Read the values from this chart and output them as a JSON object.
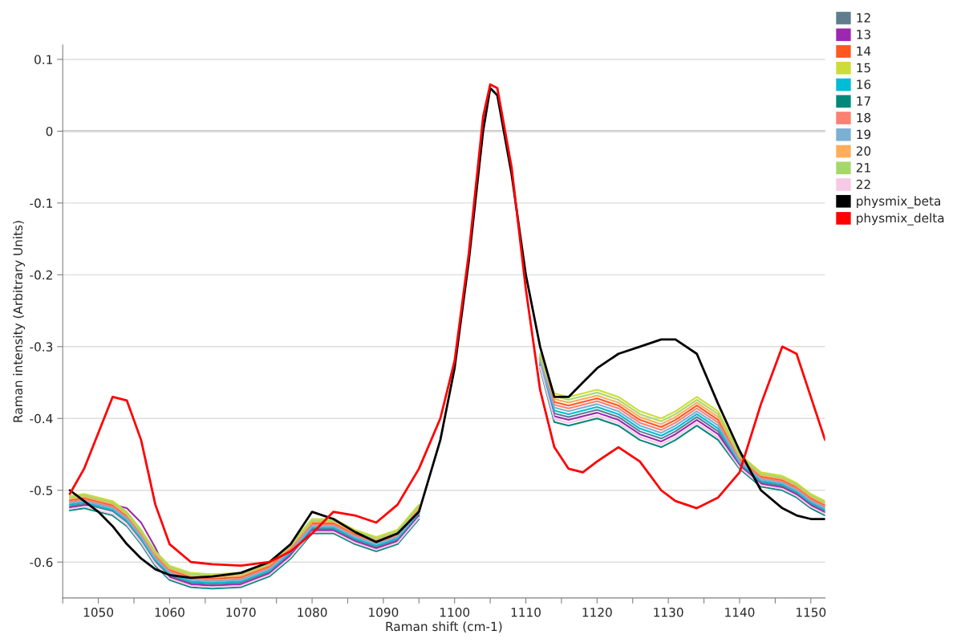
{
  "chart_data": {
    "type": "line",
    "xlabel": "Raman shift (cm-1)",
    "ylabel": "Raman intensity (Arbitrary Units)",
    "xlim": [
      1045,
      1152
    ],
    "ylim": [
      -0.65,
      0.12
    ],
    "xticks": [
      {
        "value": 1045,
        "label": null
      },
      1050,
      {
        "value": 1055,
        "label": null
      },
      1060,
      {
        "value": 1065,
        "label": null
      },
      1070,
      {
        "value": 1075,
        "label": null
      },
      1080,
      {
        "value": 1085,
        "label": null
      },
      1090,
      {
        "value": 1095,
        "label": null
      },
      1100,
      {
        "value": 1105,
        "label": null
      },
      1110,
      {
        "value": 1115,
        "label": null
      },
      1120,
      {
        "value": 1125,
        "label": null
      },
      1130,
      {
        "value": 1135,
        "label": null
      },
      1140,
      {
        "value": 1145,
        "label": null
      },
      1150
    ],
    "yticks": [
      -0.6,
      -0.5,
      -0.4,
      -0.3,
      -0.2,
      -0.1,
      0,
      0.1
    ],
    "ref_lines": [
      {
        "axis": "y",
        "value": 0,
        "color": "#808080"
      }
    ],
    "grid": "y",
    "legend": "right",
    "x": [
      1046,
      1048,
      1050,
      1052,
      1054,
      1056,
      1058,
      1060,
      1063,
      1066,
      1070,
      1074,
      1077,
      1080,
      1083,
      1086,
      1089,
      1092,
      1095,
      1098,
      1100,
      1102,
      1104,
      1105,
      1106,
      1108,
      1110,
      1112,
      1114,
      1116,
      1118,
      1120,
      1123,
      1126,
      1129,
      1131,
      1134,
      1137,
      1140,
      1143,
      1146,
      1148,
      1150,
      1152
    ],
    "series": [
      {
        "name": "12",
        "color": "#5f7d8e",
        "values": [
          -0.522,
          -0.519,
          -0.524,
          -0.529,
          -0.544,
          -0.569,
          -0.599,
          -0.619,
          -0.629,
          -0.631,
          -0.629,
          -0.614,
          -0.589,
          -0.554,
          -0.554,
          -0.569,
          -0.579,
          -0.569,
          -0.534,
          null,
          null,
          null,
          null,
          null,
          null,
          null,
          null,
          -0.324,
          -0.393,
          -0.398,
          -0.393,
          -0.388,
          -0.398,
          -0.418,
          -0.428,
          -0.418,
          -0.398,
          -0.418,
          -0.464,
          -0.489,
          -0.494,
          -0.504,
          -0.519,
          -0.529
        ]
      },
      {
        "name": "13",
        "color": "#9c27b0",
        "values": [
          -0.524,
          -0.521,
          -0.52,
          -0.52,
          -0.525,
          -0.545,
          -0.58,
          -0.621,
          -0.631,
          -0.633,
          -0.631,
          -0.616,
          -0.591,
          -0.556,
          -0.556,
          -0.571,
          -0.581,
          -0.571,
          -0.536,
          null,
          null,
          null,
          null,
          null,
          null,
          null,
          null,
          -0.326,
          -0.397,
          -0.402,
          -0.397,
          -0.392,
          -0.402,
          -0.422,
          -0.432,
          -0.422,
          -0.402,
          -0.422,
          -0.466,
          -0.491,
          -0.496,
          -0.506,
          -0.521,
          -0.531
        ]
      },
      {
        "name": "14",
        "color": "#ff5722",
        "values": [
          -0.514,
          -0.511,
          -0.516,
          -0.521,
          -0.536,
          -0.561,
          -0.591,
          -0.611,
          -0.621,
          -0.623,
          -0.621,
          -0.606,
          -0.581,
          -0.546,
          -0.546,
          -0.561,
          -0.571,
          -0.561,
          -0.526,
          null,
          null,
          null,
          null,
          null,
          null,
          null,
          null,
          -0.316,
          -0.377,
          -0.382,
          -0.377,
          -0.372,
          -0.382,
          -0.402,
          -0.412,
          -0.402,
          -0.382,
          -0.402,
          -0.456,
          -0.481,
          -0.486,
          -0.496,
          -0.511,
          -0.521
        ]
      },
      {
        "name": "15",
        "color": "#cddc39",
        "values": [
          -0.508,
          -0.505,
          -0.51,
          -0.515,
          -0.53,
          -0.555,
          -0.585,
          -0.605,
          -0.615,
          -0.617,
          -0.615,
          -0.6,
          -0.575,
          -0.54,
          -0.54,
          -0.555,
          -0.565,
          -0.555,
          -0.52,
          null,
          null,
          null,
          null,
          null,
          null,
          null,
          null,
          -0.31,
          -0.365,
          -0.37,
          -0.365,
          -0.36,
          -0.37,
          -0.39,
          -0.4,
          -0.39,
          -0.37,
          -0.39,
          -0.45,
          -0.475,
          -0.48,
          -0.49,
          -0.505,
          -0.515
        ]
      },
      {
        "name": "16",
        "color": "#00bcd4",
        "values": [
          -0.52,
          -0.517,
          -0.522,
          -0.527,
          -0.542,
          -0.567,
          -0.597,
          -0.617,
          -0.627,
          -0.629,
          -0.627,
          -0.612,
          -0.587,
          -0.552,
          -0.552,
          -0.567,
          -0.577,
          -0.567,
          -0.532,
          null,
          null,
          null,
          null,
          null,
          null,
          null,
          null,
          -0.322,
          -0.389,
          -0.394,
          -0.389,
          -0.384,
          -0.394,
          -0.414,
          -0.424,
          -0.414,
          -0.394,
          -0.414,
          -0.462,
          -0.487,
          -0.492,
          -0.502,
          -0.517,
          -0.527
        ]
      },
      {
        "name": "17",
        "color": "#00897b",
        "values": [
          -0.528,
          -0.525,
          -0.53,
          -0.535,
          -0.55,
          -0.575,
          -0.605,
          -0.625,
          -0.635,
          -0.637,
          -0.635,
          -0.62,
          -0.595,
          -0.56,
          -0.56,
          -0.575,
          -0.585,
          -0.575,
          -0.54,
          null,
          null,
          null,
          null,
          null,
          null,
          null,
          null,
          -0.33,
          -0.405,
          -0.41,
          -0.405,
          -0.4,
          -0.41,
          -0.43,
          -0.44,
          -0.43,
          -0.41,
          -0.43,
          -0.47,
          -0.495,
          -0.5,
          -0.51,
          -0.525,
          -0.535
        ]
      },
      {
        "name": "18",
        "color": "#fa8072",
        "values": [
          -0.516,
          -0.513,
          -0.518,
          -0.523,
          -0.538,
          -0.563,
          -0.593,
          -0.613,
          -0.623,
          -0.625,
          -0.623,
          -0.608,
          -0.583,
          -0.548,
          -0.548,
          -0.563,
          -0.573,
          -0.563,
          -0.528,
          null,
          null,
          null,
          null,
          null,
          null,
          null,
          null,
          -0.318,
          -0.381,
          -0.386,
          -0.381,
          -0.376,
          -0.386,
          -0.406,
          -0.416,
          -0.406,
          -0.386,
          -0.406,
          -0.458,
          -0.483,
          -0.488,
          -0.498,
          -0.513,
          -0.523
        ]
      },
      {
        "name": "19",
        "color": "#7bafd4",
        "values": [
          -0.518,
          -0.515,
          -0.52,
          -0.525,
          -0.54,
          -0.565,
          -0.595,
          -0.615,
          -0.625,
          -0.627,
          -0.625,
          -0.61,
          -0.585,
          -0.55,
          -0.55,
          -0.565,
          -0.575,
          -0.565,
          -0.53,
          null,
          null,
          null,
          null,
          null,
          null,
          null,
          null,
          -0.32,
          -0.385,
          -0.39,
          -0.385,
          -0.38,
          -0.39,
          -0.41,
          -0.42,
          -0.41,
          -0.39,
          -0.41,
          -0.46,
          -0.485,
          -0.49,
          -0.5,
          -0.515,
          -0.525
        ]
      },
      {
        "name": "20",
        "color": "#ffad5a",
        "values": [
          -0.512,
          -0.509,
          -0.514,
          -0.519,
          -0.534,
          -0.559,
          -0.589,
          -0.609,
          -0.619,
          -0.621,
          -0.619,
          -0.604,
          -0.579,
          -0.544,
          -0.544,
          -0.559,
          -0.569,
          -0.559,
          -0.524,
          null,
          null,
          null,
          null,
          null,
          null,
          null,
          null,
          -0.314,
          -0.373,
          -0.378,
          -0.373,
          -0.368,
          -0.378,
          -0.398,
          -0.408,
          -0.398,
          -0.378,
          -0.398,
          -0.454,
          -0.479,
          -0.484,
          -0.494,
          -0.509,
          -0.519
        ]
      },
      {
        "name": "21",
        "color": "#a5d86b",
        "values": [
          -0.51,
          -0.507,
          -0.512,
          -0.517,
          -0.532,
          -0.557,
          -0.587,
          -0.607,
          -0.617,
          -0.619,
          -0.617,
          -0.602,
          -0.577,
          -0.542,
          -0.542,
          -0.557,
          -0.567,
          -0.557,
          -0.522,
          null,
          null,
          null,
          null,
          null,
          null,
          null,
          null,
          -0.312,
          -0.369,
          -0.374,
          -0.369,
          -0.364,
          -0.374,
          -0.394,
          -0.404,
          -0.394,
          -0.374,
          -0.394,
          -0.452,
          -0.477,
          -0.482,
          -0.492,
          -0.507,
          -0.517
        ]
      },
      {
        "name": "22",
        "color": "#f6c9e6",
        "values": [
          -0.526,
          -0.523,
          -0.528,
          -0.533,
          -0.548,
          -0.573,
          -0.603,
          -0.623,
          -0.633,
          -0.635,
          -0.633,
          -0.618,
          -0.593,
          -0.558,
          -0.558,
          -0.573,
          -0.583,
          -0.573,
          -0.538,
          null,
          null,
          null,
          null,
          null,
          null,
          null,
          null,
          -0.328,
          -0.401,
          -0.406,
          -0.401,
          -0.396,
          -0.406,
          -0.426,
          -0.436,
          -0.426,
          -0.406,
          -0.426,
          -0.468,
          -0.493,
          -0.498,
          -0.508,
          -0.523,
          -0.533
        ]
      },
      {
        "name": "physmix_beta",
        "color": "#000000",
        "values": [
          -0.5,
          -0.515,
          -0.53,
          -0.55,
          -0.575,
          -0.595,
          -0.61,
          -0.618,
          -0.622,
          -0.62,
          -0.615,
          -0.6,
          -0.575,
          -0.53,
          -0.54,
          -0.558,
          -0.572,
          -0.56,
          -0.53,
          -0.43,
          -0.33,
          -0.18,
          0.0,
          0.06,
          0.05,
          -0.06,
          -0.2,
          -0.3,
          -0.37,
          -0.37,
          -0.35,
          -0.33,
          -0.31,
          -0.3,
          -0.29,
          -0.29,
          -0.31,
          -0.38,
          -0.445,
          -0.5,
          -0.525,
          -0.535,
          -0.54,
          -0.54
        ]
      },
      {
        "name": "physmix_delta",
        "color": "#ff0000",
        "values": [
          -0.505,
          -0.47,
          -0.42,
          -0.37,
          -0.375,
          -0.43,
          -0.52,
          -0.575,
          -0.6,
          -0.603,
          -0.605,
          -0.6,
          -0.585,
          -0.56,
          -0.53,
          -0.535,
          -0.545,
          -0.52,
          -0.47,
          -0.4,
          -0.32,
          -0.17,
          0.02,
          0.065,
          0.06,
          -0.05,
          -0.22,
          -0.36,
          -0.44,
          -0.47,
          -0.475,
          -0.46,
          -0.44,
          -0.46,
          -0.5,
          -0.515,
          -0.525,
          -0.51,
          -0.475,
          -0.38,
          -0.3,
          -0.31,
          -0.37,
          -0.43
        ]
      }
    ]
  }
}
